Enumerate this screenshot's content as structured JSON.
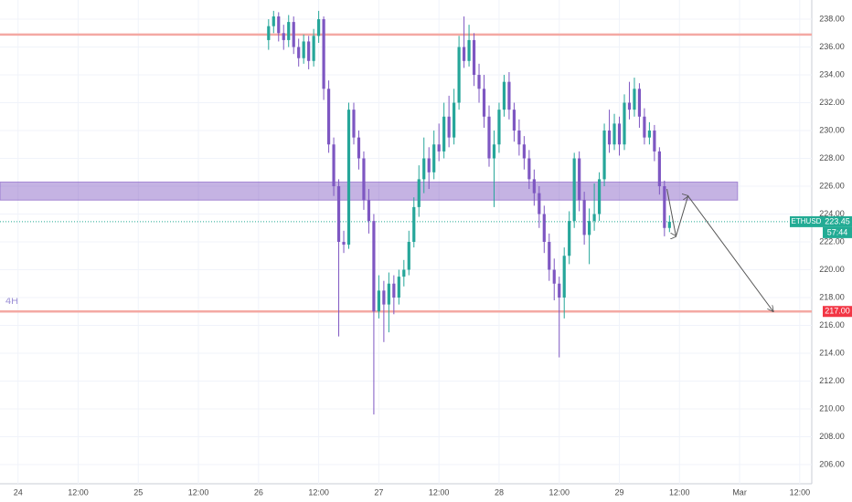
{
  "chart_data": {
    "type": "candlestick",
    "timeframe": "4H",
    "xlim": [
      -3.6,
      158.4
    ],
    "xticks": [
      {
        "value": 0,
        "label": "24"
      },
      {
        "value": 12,
        "label": "12:00"
      },
      {
        "value": 24,
        "label": "25"
      },
      {
        "value": 36,
        "label": "12:00"
      },
      {
        "value": 48,
        "label": "26"
      },
      {
        "value": 60,
        "label": "12:00"
      },
      {
        "value": 72,
        "label": "27"
      },
      {
        "value": 84,
        "label": "12:00"
      },
      {
        "value": 96,
        "label": "28"
      },
      {
        "value": 108,
        "label": "12:00"
      },
      {
        "value": 120,
        "label": "29"
      },
      {
        "value": 132,
        "label": "12:00"
      },
      {
        "value": 144,
        "label": "Mar"
      },
      {
        "value": 156,
        "label": "12:00"
      }
    ],
    "ylim": [
      204.62,
      239.38
    ],
    "yticks": [
      {
        "value": 206,
        "label": "206.00"
      },
      {
        "value": 208,
        "label": "208.00"
      },
      {
        "value": 210,
        "label": "210.00"
      },
      {
        "value": 212,
        "label": "212.00"
      },
      {
        "value": 214,
        "label": "214.00"
      },
      {
        "value": 216,
        "label": "216.00"
      },
      {
        "value": 218,
        "label": "218.00"
      },
      {
        "value": 220,
        "label": "220.00"
      },
      {
        "value": 222,
        "label": "222.00"
      },
      {
        "value": 224,
        "label": "224.00"
      },
      {
        "value": 226,
        "label": "226.00"
      },
      {
        "value": 228,
        "label": "228.00"
      },
      {
        "value": 230,
        "label": "230.00"
      },
      {
        "value": 232,
        "label": "232.00"
      },
      {
        "value": 234,
        "label": "234.00"
      },
      {
        "value": 236,
        "label": "236.00"
      },
      {
        "value": 238,
        "label": "238.00"
      }
    ],
    "grid": true,
    "up_color": "#26a69a",
    "down_color": "#7e57c2",
    "x": [
      50,
      51,
      52,
      53,
      54,
      55,
      56,
      57,
      58,
      59,
      60,
      61,
      62,
      63,
      64,
      65,
      66,
      67,
      68,
      69,
      70,
      71,
      72,
      73,
      74,
      75,
      76,
      77,
      78,
      79,
      80,
      81,
      82,
      83,
      84,
      85,
      86,
      87,
      88,
      89,
      90,
      91,
      92,
      93,
      94,
      95,
      96,
      97,
      98,
      99,
      100,
      101,
      102,
      103,
      104,
      105,
      106,
      107,
      108,
      109,
      110,
      111,
      112,
      113,
      114,
      115,
      116,
      117,
      118,
      119,
      120,
      121,
      122,
      123,
      124,
      125,
      126,
      127,
      128,
      129,
      130
    ],
    "open": [
      236.5,
      237.5,
      238.2,
      237,
      236.5,
      237.8,
      236,
      235.2,
      236.4,
      235,
      236.8,
      238,
      233,
      229,
      226,
      222,
      221.8,
      231.5,
      229.5,
      228,
      225,
      223.5,
      217,
      218.5,
      217.5,
      219,
      218,
      219.5,
      220,
      222,
      224.5,
      226.5,
      228,
      227,
      229,
      228.5,
      231,
      229.5,
      232,
      236,
      235,
      236.5,
      234,
      233,
      231,
      228,
      229,
      231.5,
      233.5,
      231.5,
      230,
      229,
      228,
      226.5,
      225.5,
      224,
      222,
      220,
      219,
      218,
      221,
      223.5,
      228,
      225,
      222.5,
      223.5,
      224,
      226.5,
      230,
      229,
      230.5,
      229,
      232,
      231.5,
      233,
      231,
      229.5,
      230,
      228.5,
      226,
      223
    ],
    "high": [
      238,
      238.6,
      238.5,
      237.6,
      238.3,
      238.2,
      236.6,
      236.9,
      236.8,
      237.3,
      238.6,
      238.2,
      233.6,
      229.5,
      226.5,
      222.8,
      232,
      232,
      230,
      228.5,
      225.8,
      224,
      219.6,
      219.2,
      219.8,
      219.6,
      220,
      220.7,
      222.8,
      225.2,
      227.5,
      229.5,
      228.8,
      230,
      230.5,
      232,
      232.5,
      233,
      236.8,
      238.2,
      237.6,
      237,
      234.8,
      234,
      231.8,
      230,
      232,
      234,
      234.2,
      232,
      230.8,
      229.6,
      228.6,
      227.2,
      226,
      224.6,
      222.6,
      220.8,
      219.5,
      221.6,
      224.2,
      228.4,
      228.5,
      225.6,
      224.4,
      226.2,
      227,
      230.5,
      231.5,
      231.2,
      231,
      232.6,
      233.5,
      233.8,
      233.4,
      231.6,
      230.6,
      230.4,
      228.8,
      226.4,
      223.9
    ],
    "low": [
      235.8,
      237,
      236.4,
      235.8,
      236,
      235.5,
      234.6,
      234.8,
      234.4,
      234.6,
      236.3,
      232.2,
      228.4,
      225.3,
      215.2,
      221.2,
      221.5,
      229,
      227.2,
      224.3,
      222.6,
      209.6,
      216.5,
      214.8,
      215.5,
      216.8,
      217.5,
      218.8,
      219.6,
      221.6,
      223.8,
      225.5,
      225.8,
      226.5,
      227.8,
      228,
      228.8,
      229,
      231.5,
      234.5,
      234.6,
      233.2,
      232,
      230.2,
      227.4,
      224.5,
      228.4,
      231,
      230.8,
      229.2,
      228.2,
      227.2,
      225.8,
      224.6,
      223,
      221.2,
      219.2,
      217.8,
      213.7,
      216.5,
      220.4,
      223,
      224.2,
      221.8,
      220.4,
      222.8,
      223.5,
      226,
      228.4,
      228.6,
      228.2,
      228.6,
      230.8,
      231,
      230.2,
      229,
      229,
      227.8,
      225.4,
      222.4,
      222.7
    ],
    "close": [
      237.5,
      238.2,
      237,
      236.5,
      237.8,
      236,
      235.2,
      236.4,
      235,
      236.8,
      238,
      233,
      229,
      226,
      222,
      221.8,
      231.5,
      229.5,
      228,
      225,
      223.5,
      217,
      218.5,
      217.5,
      219,
      218,
      219.5,
      220,
      222,
      224.5,
      226.5,
      228,
      227,
      229,
      228.5,
      231,
      229.5,
      232,
      236,
      235,
      236.5,
      234,
      233,
      231,
      228,
      229,
      231.5,
      233.5,
      231.5,
      230,
      229,
      228,
      226.5,
      225.5,
      224,
      222,
      220,
      219,
      218,
      221,
      223.5,
      228,
      225,
      222.5,
      223.5,
      224,
      226.5,
      230,
      229,
      230.5,
      229,
      232,
      231.5,
      233,
      231,
      229.5,
      230,
      228.5,
      226,
      223,
      223.45
    ],
    "levels": [
      {
        "value": 236.9,
        "color": "#f4a9a3"
      },
      {
        "value": 217,
        "label": "217.00",
        "color": "#f4a9a3",
        "tag_color": "#f23645"
      }
    ],
    "zone": {
      "low": 225.0,
      "high": 226.3,
      "x_end": 143.6,
      "color": "#7e57c2"
    },
    "last_price": {
      "symbol": "ETHUSD",
      "value": 223.45,
      "label": "223.45",
      "countdown": "57:44",
      "color": "#22ab94"
    },
    "projection": {
      "x": [
        129.5,
        131.3,
        133.7,
        150.7
      ],
      "y": [
        225.8,
        222.4,
        225.3,
        217
      ]
    }
  }
}
